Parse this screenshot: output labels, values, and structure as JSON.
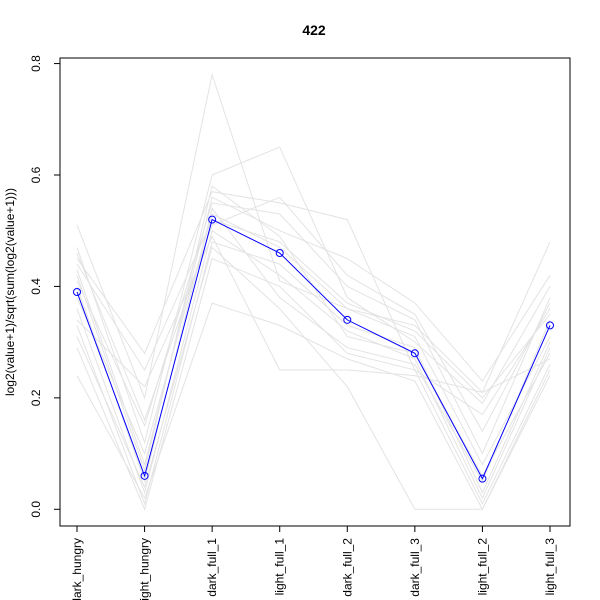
{
  "chart_data": {
    "type": "line",
    "title": "422",
    "xlabel": "",
    "ylabel": "log2(value+1)/sqrt(sum(log2(value+1)))",
    "categories": [
      "dark_hungry",
      "light_hungry",
      "dark_full_1",
      "light_full_1",
      "dark_full_2",
      "dark_full_3",
      "light_full_2",
      "light_full_3"
    ],
    "ylim": [
      -0.03,
      0.81
    ],
    "yticks": [
      0.0,
      0.2,
      0.4,
      0.6,
      0.8
    ],
    "ytick_labels": [
      "0.0",
      "0.2",
      "0.4",
      "0.6",
      "0.8"
    ],
    "grid": false,
    "colors": {
      "highlight": "#0000ff",
      "background": "#e3e3e3",
      "axis": "#000000"
    },
    "series": [
      {
        "values": [
          0.39,
          0.06,
          0.52,
          0.46,
          0.34,
          0.28,
          0.055,
          0.33
        ],
        "highlight": true
      },
      {
        "values": [
          0.51,
          0.2,
          0.78,
          0.41,
          0.36,
          0.33,
          0.21,
          0.48
        ]
      },
      {
        "values": [
          0.47,
          0.12,
          0.6,
          0.65,
          0.38,
          0.3,
          0.19,
          0.4
        ]
      },
      {
        "values": [
          0.45,
          0.28,
          0.57,
          0.55,
          0.52,
          0.25,
          0.17,
          0.36
        ]
      },
      {
        "values": [
          0.43,
          0.08,
          0.56,
          0.5,
          0.45,
          0.37,
          0.23,
          0.42
        ]
      },
      {
        "values": [
          0.41,
          0.15,
          0.55,
          0.53,
          0.4,
          0.34,
          0.1,
          0.38
        ]
      },
      {
        "values": [
          0.4,
          0.05,
          0.54,
          0.38,
          0.29,
          0.26,
          0.05,
          0.34
        ]
      },
      {
        "values": [
          0.38,
          0.1,
          0.53,
          0.47,
          0.36,
          0.31,
          0.08,
          0.31
        ]
      },
      {
        "values": [
          0.36,
          0.03,
          0.5,
          0.42,
          0.32,
          0.27,
          0.02,
          0.29
        ]
      },
      {
        "values": [
          0.34,
          0.22,
          0.49,
          0.25,
          0.25,
          0.24,
          0.21,
          0.27
        ]
      },
      {
        "values": [
          0.33,
          0.01,
          0.48,
          0.44,
          0.33,
          0.29,
          0.03,
          0.3
        ]
      },
      {
        "values": [
          0.31,
          0.04,
          0.47,
          0.36,
          0.22,
          0.0,
          0.0,
          0.24
        ]
      },
      {
        "values": [
          0.29,
          0.0,
          0.45,
          0.4,
          0.28,
          0.25,
          0.01,
          0.26
        ]
      },
      {
        "values": [
          0.24,
          0.02,
          0.37,
          0.33,
          0.27,
          0.23,
          0.0,
          0.25
        ]
      },
      {
        "values": [
          0.46,
          0.16,
          0.51,
          0.56,
          0.42,
          0.35,
          0.14,
          0.37
        ]
      },
      {
        "values": [
          0.42,
          0.07,
          0.58,
          0.49,
          0.31,
          0.28,
          0.06,
          0.28
        ]
      },
      {
        "values": [
          0.44,
          0.25,
          0.52,
          0.48,
          0.37,
          0.32,
          0.2,
          0.35
        ]
      }
    ]
  }
}
